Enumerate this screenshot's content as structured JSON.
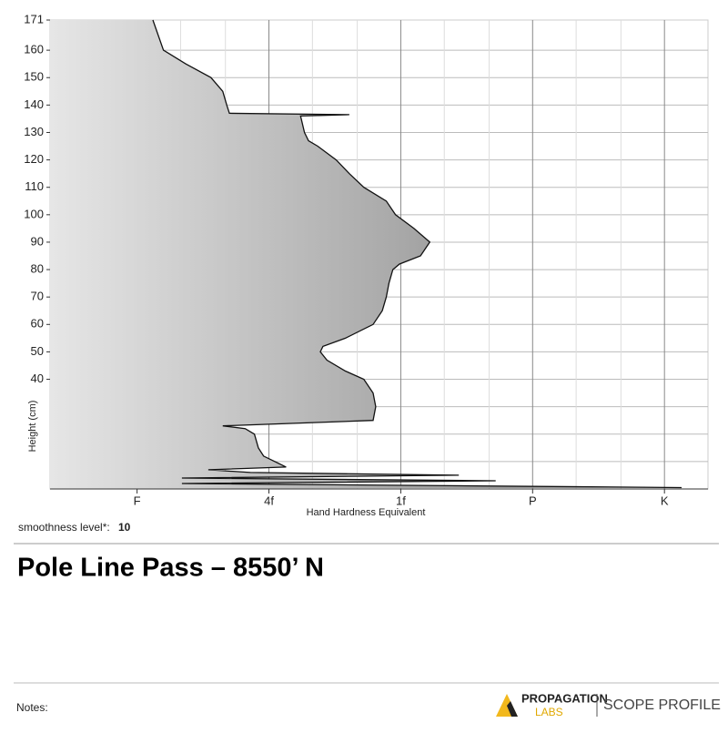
{
  "chart_data": {
    "type": "profile",
    "xlabel": "Hand Hardness Equivalent",
    "ylabel": "Height (cm)",
    "xlim": [
      0.34,
      5.33
    ],
    "ylim": [
      0,
      171
    ],
    "xticks": [
      {
        "value": 1,
        "label": "F"
      },
      {
        "value": 2,
        "label": "4f"
      },
      {
        "value": 3,
        "label": "1f"
      },
      {
        "value": 4,
        "label": "P"
      },
      {
        "value": 5,
        "label": "K"
      }
    ],
    "xgrid_minor": [
      0.67,
      1.33,
      1.67,
      2.33,
      2.67,
      3.33,
      3.67,
      4.33,
      4.67
    ],
    "yticks": [
      40,
      50,
      60,
      70,
      80,
      90,
      100,
      110,
      120,
      130,
      140,
      150,
      160,
      171
    ],
    "ygrid": [
      10,
      20,
      30,
      40,
      50,
      60,
      70,
      80,
      90,
      100,
      110,
      120,
      130,
      140,
      150,
      160
    ],
    "grid": true,
    "color": "#111111",
    "heights": [
      171,
      160,
      155,
      150,
      145,
      140,
      137,
      136.5,
      136,
      130,
      127,
      125,
      120,
      115,
      110,
      105,
      100,
      95,
      90,
      85,
      82,
      80,
      75,
      70,
      65,
      60,
      55,
      52,
      50,
      47,
      43,
      40,
      35,
      30,
      25,
      23,
      22,
      20,
      15,
      12,
      8,
      7,
      6,
      5,
      4,
      3,
      2,
      0.5
    ],
    "values": [
      1.12,
      1.2,
      1.37,
      1.56,
      1.65,
      1.68,
      1.7,
      2.61,
      2.24,
      2.27,
      2.3,
      2.37,
      2.51,
      2.61,
      2.72,
      2.89,
      2.96,
      3.1,
      3.22,
      3.15,
      2.99,
      2.94,
      2.91,
      2.89,
      2.86,
      2.79,
      2.58,
      2.41,
      2.39,
      2.44,
      2.58,
      2.72,
      2.79,
      2.81,
      2.79,
      1.65,
      1.82,
      1.89,
      1.92,
      1.96,
      2.13,
      1.54,
      1.86,
      3.44,
      1.34,
      3.72,
      1.34,
      5.13
    ]
  },
  "smoothness": {
    "label": "smoothness level*:",
    "value": "10"
  },
  "title": "Pole Line Pass – 8550’ N",
  "notes": "Notes:",
  "logo": {
    "line1": "PROPAGATION",
    "line2": "LABS",
    "product": "SCOPE PROFILE"
  }
}
